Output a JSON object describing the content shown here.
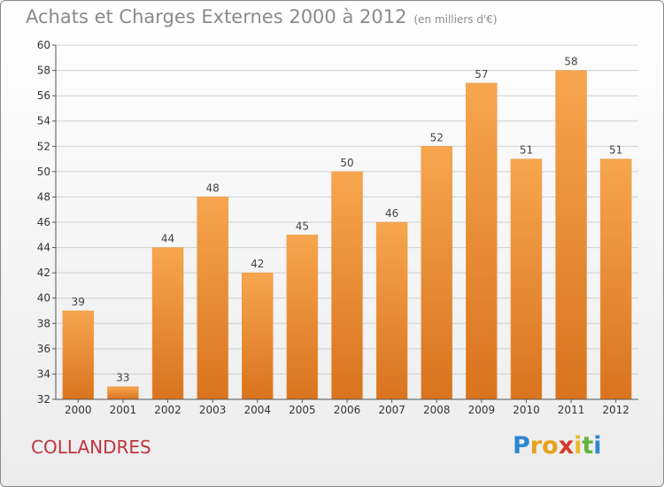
{
  "title": "Achats et Charges Externes 2000 à 2012",
  "subtitle": "(en milliers d'€)",
  "place": "COLLANDRES",
  "logo_letters": [
    "P",
    "r",
    "o",
    "x",
    "i",
    "t",
    "i"
  ],
  "colors": {
    "bar_light": "#f7a64f",
    "bar_dark": "#d9731e",
    "axis": "#555555",
    "grid": "#cfcfcf",
    "title": "#8a8a8a",
    "place": "#c0343f"
  },
  "chart_data": {
    "type": "bar",
    "title": "Achats et Charges Externes 2000 à 2012",
    "subtitle": "(en milliers d'€)",
    "categories": [
      "2000",
      "2001",
      "2002",
      "2003",
      "2004",
      "2005",
      "2006",
      "2007",
      "2008",
      "2009",
      "2010",
      "2011",
      "2012"
    ],
    "values": [
      39,
      33,
      44,
      48,
      42,
      45,
      50,
      46,
      52,
      57,
      51,
      58,
      51
    ],
    "ylim": [
      32,
      60
    ],
    "yticks": [
      32,
      34,
      36,
      38,
      40,
      42,
      44,
      46,
      48,
      50,
      52,
      54,
      56,
      58,
      60
    ],
    "grid": true,
    "data_labels": true
  }
}
